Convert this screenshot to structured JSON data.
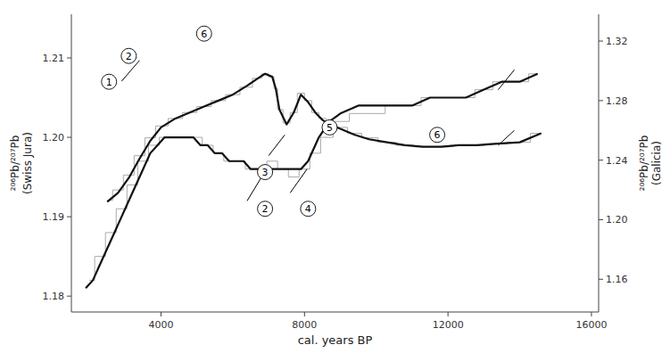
{
  "chart_data": {
    "type": "line",
    "x_label": "cal. years BP",
    "y_label": "²⁰⁶Pb/²⁰⁷Pb\n(Swiss Jura)",
    "y2_label": "²⁰⁶Pb/²⁰⁷Pb\n(Galicia)",
    "xlim": [
      1500,
      16200
    ],
    "ylim": [
      1.178,
      1.2155
    ],
    "y2lim": [
      1.138,
      1.338
    ],
    "xticks": [
      4000,
      8000,
      12000,
      16000
    ],
    "yticks": [
      1.18,
      1.19,
      {
        "value": 1.2,
        "label": "1.20"
      },
      1.21
    ],
    "y2ticks": [
      1.16,
      {
        "value": 1.2,
        "label": "1.20"
      },
      1.24,
      1.28,
      1.32
    ],
    "grid": false,
    "series": [
      {
        "type": "step",
        "color": "#aaaaaa",
        "axis": "y",
        "x": [
          2000,
          2300,
          2600,
          2900,
          3200,
          3500,
          3800,
          4100,
          4400,
          4700,
          5000,
          5300,
          5600,
          5900,
          6200,
          6500,
          6800,
          7100,
          7400,
          7700,
          8000,
          8300,
          8600,
          9000,
          9500,
          10000,
          10500,
          11000,
          11500,
          12000,
          12500,
          13000,
          13500,
          14000,
          14500
        ],
        "values": [
          1.182,
          1.185,
          1.188,
          1.191,
          1.194,
          1.197,
          1.199,
          1.2,
          1.2,
          1.2,
          1.2,
          1.199,
          1.198,
          1.197,
          1.197,
          1.196,
          1.196,
          1.197,
          1.196,
          1.195,
          1.196,
          1.198,
          1.2,
          1.202,
          1.203,
          1.203,
          1.204,
          1.204,
          1.205,
          1.205,
          1.205,
          1.206,
          1.207,
          1.207,
          1.208
        ]
      },
      {
        "type": "line",
        "color": "#111111",
        "axis": "y",
        "x": [
          1900,
          2100,
          2300,
          2500,
          2700,
          2900,
          3100,
          3300,
          3500,
          3700,
          3900,
          4100,
          4300,
          4500,
          4700,
          4900,
          5100,
          5300,
          5500,
          5700,
          5900,
          6100,
          6300,
          6500,
          6700,
          6900,
          7100,
          7300,
          7500,
          7700,
          7900,
          8100,
          8400,
          8700,
          9000,
          9500,
          10000,
          10500,
          11000,
          11500,
          12000,
          12500,
          13000,
          13500,
          14000,
          14500
        ],
        "values": [
          1.181,
          1.182,
          1.184,
          1.186,
          1.188,
          1.19,
          1.192,
          1.194,
          1.196,
          1.198,
          1.199,
          1.2,
          1.2,
          1.2,
          1.2,
          1.2,
          1.199,
          1.199,
          1.198,
          1.198,
          1.197,
          1.197,
          1.197,
          1.196,
          1.196,
          1.196,
          1.196,
          1.196,
          1.196,
          1.196,
          1.196,
          1.197,
          1.2,
          1.202,
          1.203,
          1.204,
          1.204,
          1.204,
          1.204,
          1.205,
          1.205,
          1.205,
          1.206,
          1.207,
          1.207,
          1.208
        ]
      },
      {
        "type": "step",
        "color": "#aaaaaa",
        "axis": "y2",
        "x": [
          2500,
          2800,
          3100,
          3400,
          3700,
          4000,
          4400,
          4800,
          5200,
          5600,
          6000,
          6400,
          6700,
          6900,
          7100,
          7200,
          7300,
          7500,
          7700,
          7900,
          8100,
          8300,
          8500,
          8700,
          9000,
          9400,
          9800,
          10300,
          10800,
          11300,
          11800,
          12300,
          12800,
          13300,
          14000,
          14600
        ],
        "values": [
          1.213,
          1.22,
          1.23,
          1.243,
          1.255,
          1.263,
          1.268,
          1.272,
          1.276,
          1.28,
          1.284,
          1.289,
          1.295,
          1.298,
          1.296,
          1.288,
          1.274,
          1.265,
          1.272,
          1.285,
          1.28,
          1.272,
          1.268,
          1.265,
          1.262,
          1.258,
          1.255,
          1.252,
          1.25,
          1.249,
          1.249,
          1.25,
          1.25,
          1.251,
          1.252,
          1.258
        ]
      },
      {
        "type": "line",
        "color": "#111111",
        "axis": "y2",
        "x": [
          2500,
          2800,
          3100,
          3400,
          3700,
          4000,
          4400,
          4800,
          5200,
          5600,
          6000,
          6400,
          6700,
          6900,
          7100,
          7200,
          7300,
          7500,
          7700,
          7900,
          8100,
          8300,
          8500,
          8700,
          9000,
          9400,
          9800,
          10300,
          10800,
          11300,
          11800,
          12300,
          12800,
          13300,
          14000,
          14600
        ],
        "values": [
          1.212,
          1.218,
          1.228,
          1.241,
          1.253,
          1.262,
          1.268,
          1.272,
          1.276,
          1.28,
          1.284,
          1.29,
          1.295,
          1.298,
          1.296,
          1.288,
          1.274,
          1.264,
          1.272,
          1.284,
          1.279,
          1.272,
          1.267,
          1.264,
          1.261,
          1.257,
          1.254,
          1.252,
          1.25,
          1.249,
          1.249,
          1.25,
          1.25,
          1.251,
          1.252,
          1.258
        ]
      }
    ],
    "annotations": [
      {
        "text": "2",
        "x": 3100,
        "y": 1.31,
        "axis": "y2"
      },
      {
        "text": "6",
        "x": 5200,
        "y": 1.325,
        "axis": "y2"
      },
      {
        "text": "3",
        "x": 6900,
        "y": 1.232,
        "axis": "y2"
      },
      {
        "text": "5",
        "x": 8700,
        "y": 1.262,
        "axis": "y2"
      },
      {
        "text": "6",
        "x": 11700,
        "y": 1.257,
        "axis": "y2"
      },
      {
        "text": "1",
        "x": 2550,
        "y": 1.207,
        "axis": "y"
      },
      {
        "text": "2",
        "x": 6900,
        "y": 1.191,
        "axis": "y"
      },
      {
        "text": "4",
        "x": 8100,
        "y": 1.191,
        "axis": "y"
      }
    ],
    "slashes": [
      {
        "x1": 2900,
        "y1": 1.293,
        "x2": 3400,
        "y2": 1.307,
        "axis": "y2"
      },
      {
        "x1": 7000,
        "y1": 1.243,
        "x2": 7450,
        "y2": 1.257,
        "axis": "y2"
      },
      {
        "x1": 13400,
        "y1": 1.25,
        "x2": 13850,
        "y2": 1.26,
        "axis": "y2"
      },
      {
        "x1": 6400,
        "y1": 1.192,
        "x2": 6870,
        "y2": 1.1955,
        "axis": "y"
      },
      {
        "x1": 7600,
        "y1": 1.193,
        "x2": 8070,
        "y2": 1.196,
        "axis": "y"
      },
      {
        "x1": 13400,
        "y1": 1.206,
        "x2": 13850,
        "y2": 1.2085,
        "axis": "y"
      }
    ]
  }
}
